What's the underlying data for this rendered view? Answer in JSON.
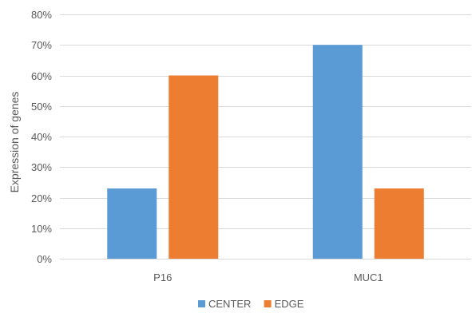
{
  "chart_data": {
    "type": "bar",
    "title": "",
    "xlabel": "",
    "ylabel": "Expression of genes",
    "categories": [
      "P16",
      "MUC1"
    ],
    "series": [
      {
        "name": "CENTER",
        "values": [
          0.23,
          0.7
        ],
        "color": "#5b9bd5"
      },
      {
        "name": "EDGE",
        "values": [
          0.6,
          0.23
        ],
        "color": "#ed7d31"
      }
    ],
    "ylim": [
      0,
      0.8
    ],
    "yticks": [
      0,
      0.1,
      0.2,
      0.3,
      0.4,
      0.5,
      0.6,
      0.7,
      0.8
    ],
    "ytick_labels": [
      "0%",
      "10%",
      "20%",
      "30%",
      "40%",
      "50%",
      "60%",
      "70%",
      "80%"
    ],
    "grid": true,
    "legend_position": "bottom"
  }
}
